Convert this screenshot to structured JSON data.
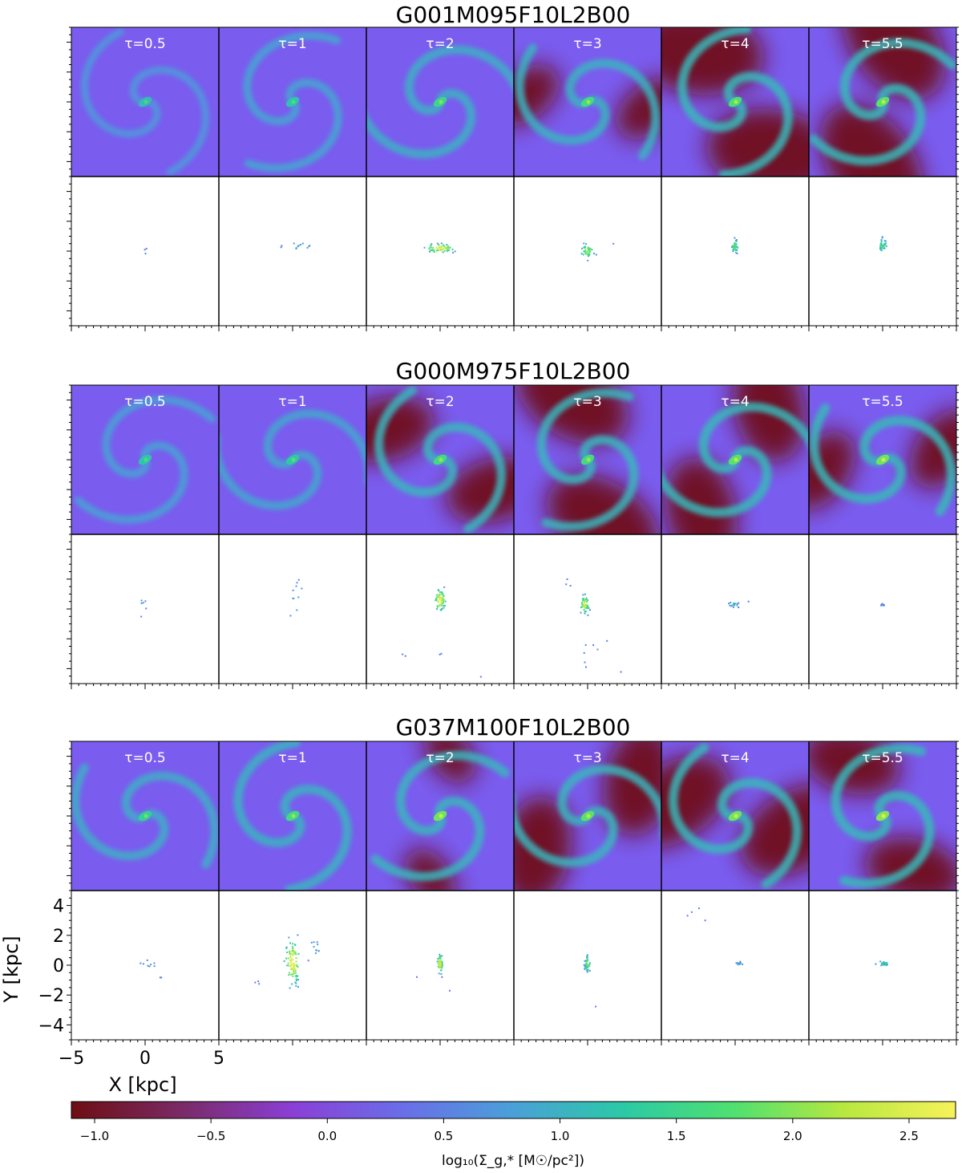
{
  "figure": {
    "colorbar_label": "log₁₀(Σ_g,* [M☉/pc²])"
  },
  "chart_data": {
    "type": "heatmap",
    "panel_labels": [
      "τ=0.5",
      "τ=1",
      "τ=2",
      "τ=3",
      "τ=4",
      "τ=5.5"
    ],
    "tau": [
      0.5,
      1,
      2,
      3,
      4,
      5.5
    ],
    "xlabel": "X [kpc]",
    "ylabel": "Y [kpc]",
    "xlim": [
      -5,
      5
    ],
    "ylim": [
      -5,
      5
    ],
    "x_ticks": [
      -5,
      0,
      5
    ],
    "y_ticks": [
      4,
      2,
      0,
      -2,
      -4
    ],
    "x_tick_labels": [
      "−5",
      "0",
      "5"
    ],
    "y_tick_labels": [
      "4",
      "2",
      "0",
      "−2",
      "−4"
    ],
    "colorbar": {
      "range": [
        -1.1,
        2.7
      ],
      "ticks": [
        -1.0,
        -0.5,
        0.0,
        0.5,
        1.0,
        1.5,
        2.0,
        2.5
      ],
      "tick_labels": [
        "−1.0",
        "−0.5",
        "0.0",
        "0.5",
        "1.0",
        "1.5",
        "2.0",
        "2.5"
      ],
      "colors": [
        "#6e0e12",
        "#7a2a66",
        "#8b3fd6",
        "#6a6ee8",
        "#4aa0d8",
        "#2cc9a6",
        "#50e070",
        "#b8e840",
        "#f7f25a"
      ]
    },
    "background_color": "#7a5cef",
    "groups": [
      {
        "title": "G001M095F10L2B00",
        "gas_low_density": [
          0,
          0,
          0,
          0.4,
          0.9,
          0.9
        ],
        "gas_arm_strength": [
          0.35,
          0.55,
          0.75,
          0.8,
          0.9,
          0.9
        ],
        "gas_peak": [
          1.6,
          1.7,
          2.0,
          2.1,
          2.2,
          2.3
        ],
        "stars": [
          [
            {
              "x": 0,
              "y": 0,
              "n": 3,
              "sx": 0.1,
              "sy": 0.25
            }
          ],
          [
            {
              "x": 0.5,
              "y": 0.3,
              "n": 12,
              "sx": 0.9,
              "sy": 0.2
            }
          ],
          [
            {
              "x": 0,
              "y": 0.2,
              "n": 60,
              "sx": 0.7,
              "sy": 0.18
            }
          ],
          [
            {
              "x": 0,
              "y": 0,
              "n": 40,
              "sx": 0.3,
              "sy": 0.35
            },
            {
              "x": 1.7,
              "y": 0.5,
              "n": 1,
              "sx": 0.05,
              "sy": 0.05
            }
          ],
          [
            {
              "x": 0,
              "y": 0.3,
              "n": 35,
              "sx": 0.15,
              "sy": 0.3
            }
          ],
          [
            {
              "x": 0,
              "y": 0.4,
              "n": 30,
              "sx": 0.2,
              "sy": 0.3
            }
          ]
        ]
      },
      {
        "title": "G000M975F10L2B00",
        "gas_low_density": [
          0,
          0,
          0.6,
          0.8,
          0.7,
          0.5
        ],
        "gas_arm_strength": [
          0.5,
          0.6,
          0.85,
          0.85,
          0.9,
          0.9
        ],
        "gas_peak": [
          1.7,
          1.8,
          2.1,
          2.1,
          2.3,
          2.4
        ],
        "stars": [
          [
            {
              "x": -0.2,
              "y": 0.2,
              "n": 6,
              "sx": 0.3,
              "sy": 0.6
            }
          ],
          [
            {
              "x": 0.3,
              "y": 0.5,
              "n": 10,
              "sx": 0.5,
              "sy": 1.1
            }
          ],
          [
            {
              "x": 0,
              "y": 0.6,
              "n": 70,
              "sx": 0.25,
              "sy": 0.5
            },
            {
              "x": -2.5,
              "y": -3.1,
              "n": 2,
              "sx": 0.1,
              "sy": 0.1
            },
            {
              "x": 0,
              "y": -3.0,
              "n": 2,
              "sx": 0.1,
              "sy": 0.1
            },
            {
              "x": 2.8,
              "y": -4.6,
              "n": 1,
              "sx": 0.05,
              "sy": 0.05
            }
          ],
          [
            {
              "x": -0.2,
              "y": 0.3,
              "n": 50,
              "sx": 0.2,
              "sy": 0.4
            },
            {
              "x": 1.0,
              "y": -3.2,
              "n": 8,
              "sx": 0.9,
              "sy": 0.7
            },
            {
              "x": -1.5,
              "y": 1.8,
              "n": 3,
              "sx": 0.3,
              "sy": 0.3
            }
          ],
          [
            {
              "x": -0.1,
              "y": 0.3,
              "n": 18,
              "sx": 0.25,
              "sy": 0.12
            },
            {
              "x": 0.9,
              "y": 0.5,
              "n": 1,
              "sx": 0.05,
              "sy": 0.05
            }
          ],
          [
            {
              "x": 0,
              "y": 0.3,
              "n": 10,
              "sx": 0.1,
              "sy": 0.05
            }
          ]
        ]
      },
      {
        "title": "G037M100F10L2B00",
        "gas_low_density": [
          0,
          0,
          0.3,
          0.7,
          0.8,
          0.6
        ],
        "gas_arm_strength": [
          0.7,
          0.8,
          0.85,
          0.85,
          0.9,
          0.9
        ],
        "gas_peak": [
          1.9,
          2.1,
          2.4,
          2.3,
          2.4,
          2.5
        ],
        "stars": [
          [
            {
              "x": 0.3,
              "y": 0.1,
              "n": 8,
              "sx": 0.4,
              "sy": 0.2
            },
            {
              "x": 1.1,
              "y": -0.8,
              "n": 2,
              "sx": 0.1,
              "sy": 0.1
            }
          ],
          [
            {
              "x": 0,
              "y": 0.2,
              "n": 90,
              "sx": 0.35,
              "sy": 1.0
            },
            {
              "x": 1.5,
              "y": 1.2,
              "n": 10,
              "sx": 0.4,
              "sy": 0.6
            },
            {
              "x": -2.3,
              "y": -1.1,
              "n": 3,
              "sx": 0.2,
              "sy": 0.1
            }
          ],
          [
            {
              "x": 0,
              "y": 0.1,
              "n": 60,
              "sx": 0.12,
              "sy": 0.4
            },
            {
              "x": -1.6,
              "y": -0.8,
              "n": 1,
              "sx": 0.05,
              "sy": 0.05
            },
            {
              "x": 0.6,
              "y": -1.7,
              "n": 1,
              "sx": 0.05,
              "sy": 0.05
            }
          ],
          [
            {
              "x": 0,
              "y": 0.1,
              "n": 40,
              "sx": 0.12,
              "sy": 0.35
            },
            {
              "x": 0.5,
              "y": -2.8,
              "n": 1,
              "sx": 0.05,
              "sy": 0.05
            }
          ],
          [
            {
              "x": 0.3,
              "y": 0.1,
              "n": 12,
              "sx": 0.15,
              "sy": 0.1
            },
            {
              "x": -2.6,
              "y": 3.4,
              "n": 4,
              "sx": 0.5,
              "sy": 0.5
            }
          ],
          [
            {
              "x": 0.1,
              "y": 0.1,
              "n": 22,
              "sx": 0.3,
              "sy": 0.15
            }
          ]
        ]
      }
    ]
  }
}
